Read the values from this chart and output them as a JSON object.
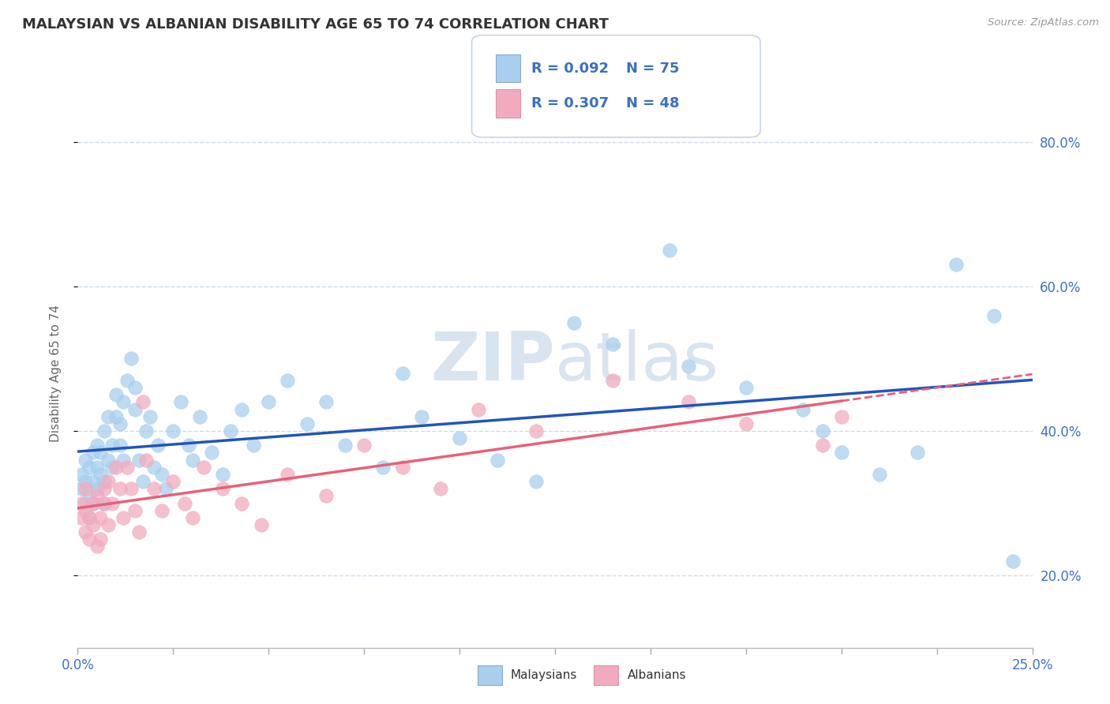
{
  "title": "MALAYSIAN VS ALBANIAN DISABILITY AGE 65 TO 74 CORRELATION CHART",
  "source_text": "Source: ZipAtlas.com",
  "ylabel": "Disability Age 65 to 74",
  "xmin": 0.0,
  "xmax": 0.25,
  "ymin": 0.1,
  "ymax": 0.86,
  "yticks": [
    0.2,
    0.4,
    0.6,
    0.8
  ],
  "ytick_labels": [
    "20.0%",
    "40.0%",
    "60.0%",
    "80.0%"
  ],
  "legend_r1": "R = 0.092",
  "legend_n1": "N = 75",
  "legend_r2": "R = 0.307",
  "legend_n2": "N = 48",
  "color_malaysian": "#A8CFEE",
  "color_albanian": "#F2ABBE",
  "color_trend_malaysian": "#2255BB",
  "color_trend_albanian": "#E8607A",
  "watermark_color": "#D8E4F0",
  "background_color": "#FFFFFF",
  "grid_color": "#CADCF0",
  "malaysian_x": [
    0.001,
    0.001,
    0.002,
    0.002,
    0.002,
    0.003,
    0.003,
    0.003,
    0.004,
    0.004,
    0.004,
    0.005,
    0.005,
    0.005,
    0.006,
    0.006,
    0.007,
    0.007,
    0.007,
    0.008,
    0.008,
    0.009,
    0.009,
    0.01,
    0.01,
    0.011,
    0.011,
    0.012,
    0.012,
    0.013,
    0.014,
    0.015,
    0.015,
    0.016,
    0.017,
    0.018,
    0.019,
    0.02,
    0.021,
    0.022,
    0.023,
    0.025,
    0.027,
    0.029,
    0.03,
    0.032,
    0.035,
    0.038,
    0.04,
    0.043,
    0.046,
    0.05,
    0.055,
    0.06,
    0.065,
    0.07,
    0.08,
    0.085,
    0.09,
    0.1,
    0.11,
    0.12,
    0.13,
    0.14,
    0.155,
    0.16,
    0.175,
    0.19,
    0.195,
    0.2,
    0.21,
    0.22,
    0.23,
    0.24,
    0.245
  ],
  "malaysian_y": [
    0.32,
    0.34,
    0.3,
    0.33,
    0.36,
    0.28,
    0.31,
    0.35,
    0.3,
    0.33,
    0.37,
    0.32,
    0.35,
    0.38,
    0.34,
    0.37,
    0.3,
    0.33,
    0.4,
    0.36,
    0.42,
    0.35,
    0.38,
    0.45,
    0.42,
    0.38,
    0.41,
    0.36,
    0.44,
    0.47,
    0.5,
    0.46,
    0.43,
    0.36,
    0.33,
    0.4,
    0.42,
    0.35,
    0.38,
    0.34,
    0.32,
    0.4,
    0.44,
    0.38,
    0.36,
    0.42,
    0.37,
    0.34,
    0.4,
    0.43,
    0.38,
    0.44,
    0.47,
    0.41,
    0.44,
    0.38,
    0.35,
    0.48,
    0.42,
    0.39,
    0.36,
    0.33,
    0.55,
    0.52,
    0.65,
    0.49,
    0.46,
    0.43,
    0.4,
    0.37,
    0.34,
    0.37,
    0.63,
    0.56,
    0.22
  ],
  "albanian_x": [
    0.001,
    0.001,
    0.002,
    0.002,
    0.002,
    0.003,
    0.003,
    0.004,
    0.004,
    0.005,
    0.005,
    0.006,
    0.006,
    0.007,
    0.007,
    0.008,
    0.008,
    0.009,
    0.01,
    0.011,
    0.012,
    0.013,
    0.014,
    0.015,
    0.016,
    0.017,
    0.018,
    0.02,
    0.022,
    0.025,
    0.028,
    0.03,
    0.033,
    0.038,
    0.043,
    0.048,
    0.055,
    0.065,
    0.075,
    0.085,
    0.095,
    0.105,
    0.12,
    0.14,
    0.16,
    0.175,
    0.195,
    0.2
  ],
  "albanian_y": [
    0.28,
    0.3,
    0.26,
    0.29,
    0.32,
    0.25,
    0.28,
    0.3,
    0.27,
    0.24,
    0.31,
    0.28,
    0.25,
    0.32,
    0.3,
    0.27,
    0.33,
    0.3,
    0.35,
    0.32,
    0.28,
    0.35,
    0.32,
    0.29,
    0.26,
    0.44,
    0.36,
    0.32,
    0.29,
    0.33,
    0.3,
    0.28,
    0.35,
    0.32,
    0.3,
    0.27,
    0.34,
    0.31,
    0.38,
    0.35,
    0.32,
    0.43,
    0.4,
    0.47,
    0.44,
    0.41,
    0.38,
    0.42
  ]
}
